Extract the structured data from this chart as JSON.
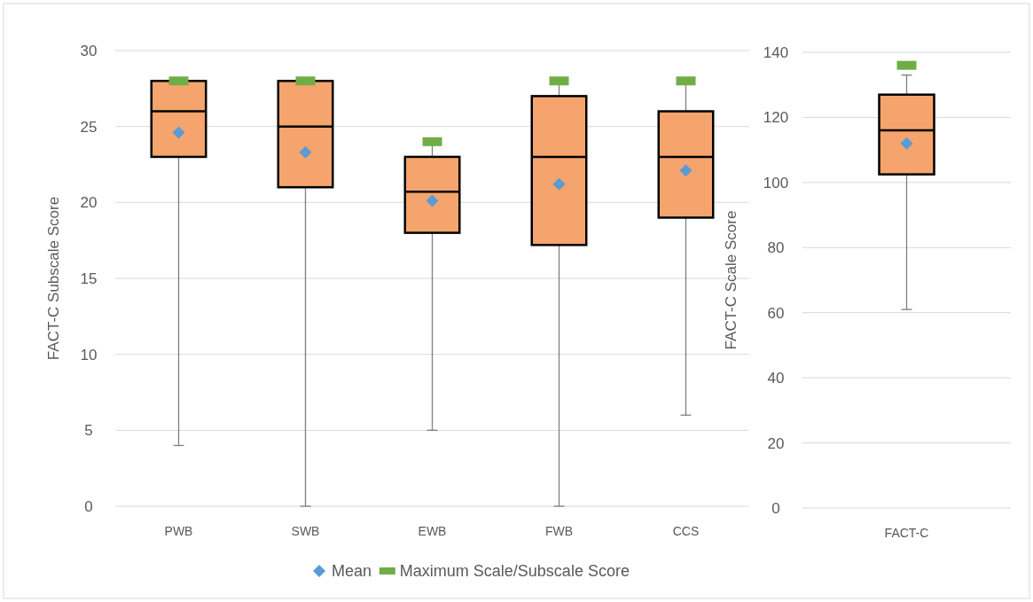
{
  "chart_data": [
    {
      "type": "box",
      "ylabel": "FACT-C Subscale Score",
      "categories": [
        "PWB",
        "SWB",
        "EWB",
        "FWB",
        "CCS"
      ],
      "ylim": [
        0,
        30
      ],
      "yticks": [
        0,
        5,
        10,
        15,
        20,
        25,
        30
      ],
      "grid": "y",
      "legend": "bottom",
      "series": [
        {
          "color": "#f4a46c",
          "boxes": [
            {
              "low": 4,
              "q1": 23,
              "median": 26,
              "q3": 28,
              "high": 28
            },
            {
              "low": 0,
              "q1": 21,
              "median": 25,
              "q3": 28,
              "high": 28
            },
            {
              "low": 5,
              "q1": 18,
              "median": 20.7,
              "q3": 23,
              "high": 24
            },
            {
              "low": 0,
              "q1": 17.2,
              "median": 23,
              "q3": 27,
              "high": 28
            },
            {
              "low": 6,
              "q1": 19,
              "median": 23,
              "q3": 26,
              "high": 28
            }
          ]
        },
        {
          "type": "scatter",
          "name": "Mean",
          "color": "#5b9bd5",
          "marker": "diamond",
          "x": [
            "PWB",
            "SWB",
            "EWB",
            "FWB",
            "CCS"
          ],
          "values": [
            24.6,
            23.3,
            20.1,
            21.2,
            22.1
          ]
        },
        {
          "type": "scatter",
          "name": "Maximum Scale/Subscale Score",
          "color": "#70ad47",
          "marker": "square",
          "x": [
            "PWB",
            "SWB",
            "EWB",
            "FWB",
            "CCS"
          ],
          "values": [
            28,
            28,
            24,
            28,
            28
          ]
        }
      ]
    },
    {
      "type": "box",
      "ylabel": "FACT-C Scale Score",
      "categories": [
        "FACT-C"
      ],
      "ylim": [
        0,
        140
      ],
      "yticks": [
        0,
        20,
        40,
        60,
        80,
        100,
        120,
        140
      ],
      "grid": "y",
      "series": [
        {
          "color": "#f4a46c",
          "boxes": [
            {
              "low": 61,
              "q1": 102.5,
              "median": 116,
              "q3": 127,
              "high": 133
            }
          ]
        },
        {
          "type": "scatter",
          "color": "#5b9bd5",
          "marker": "diamond",
          "x": [
            "FACT-C"
          ],
          "values": [
            112
          ]
        },
        {
          "type": "scatter",
          "color": "#70ad47",
          "marker": "square",
          "x": [
            "FACT-C"
          ],
          "values": [
            136
          ]
        }
      ]
    }
  ]
}
